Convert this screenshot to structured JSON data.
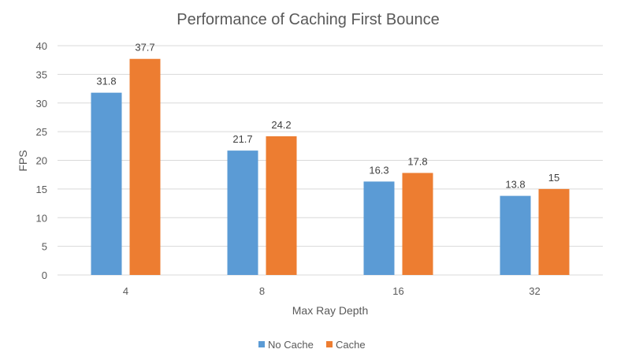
{
  "chart_data": {
    "type": "bar",
    "title": "Performance of Caching First Bounce",
    "xlabel": "Max Ray Depth",
    "ylabel": "FPS",
    "categories": [
      "4",
      "8",
      "16",
      "32"
    ],
    "series": [
      {
        "name": "No Cache",
        "values": [
          31.8,
          21.7,
          16.3,
          13.8
        ],
        "labels": [
          "31.8",
          "21.7",
          "16.3",
          "13.8"
        ],
        "color": "#5b9bd5"
      },
      {
        "name": "Cache",
        "values": [
          37.7,
          24.2,
          17.8,
          15
        ],
        "labels": [
          "37.7",
          "24.2",
          "17.8",
          "15"
        ],
        "color": "#ed7d31"
      }
    ],
    "ylim": [
      0,
      40
    ],
    "yticks": [
      0,
      5,
      10,
      15,
      20,
      25,
      30,
      35,
      40
    ],
    "grid": true,
    "legend_position": "bottom",
    "gridline_color": "#d9d9d9"
  }
}
